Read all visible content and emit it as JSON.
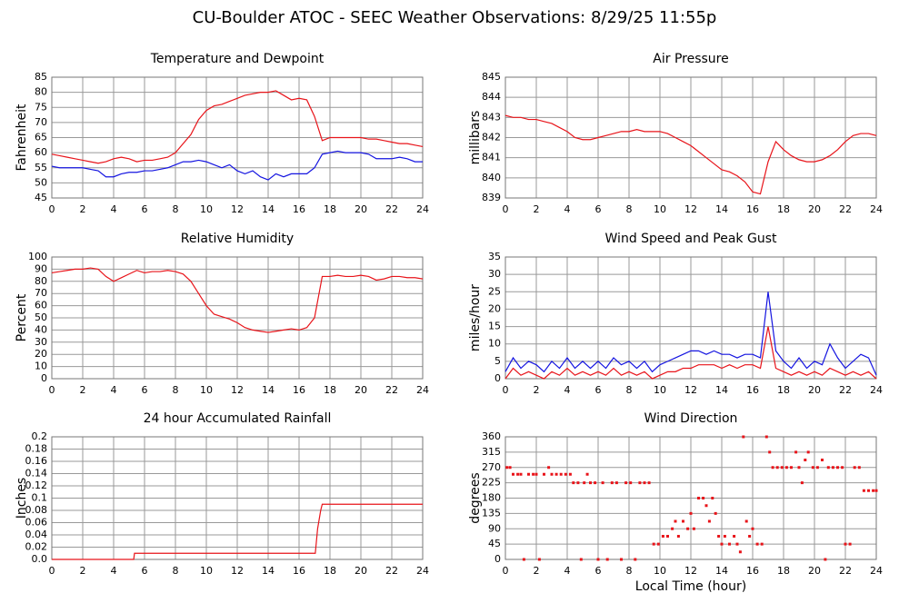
{
  "title": "CU-Boulder ATOC - SEEC Weather Observations: 8/29/25 11:55p",
  "chart_data": [
    {
      "type": "line",
      "title": "Temperature and Dewpoint",
      "ylabel": "Fahrenheit",
      "x": [
        0,
        0.5,
        1,
        1.5,
        2,
        2.5,
        3,
        3.5,
        4,
        4.5,
        5,
        5.5,
        6,
        6.5,
        7,
        7.5,
        8,
        8.5,
        9,
        9.5,
        10,
        10.5,
        11,
        11.5,
        12,
        12.5,
        13,
        13.5,
        14,
        14.5,
        15,
        15.5,
        16,
        16.5,
        17,
        17.5,
        18,
        18.5,
        19,
        19.5,
        20,
        20.5,
        21,
        21.5,
        22,
        22.5,
        23,
        23.5,
        24
      ],
      "series": [
        {
          "color": "#e8141a",
          "values": [
            59.5,
            59,
            58.5,
            58,
            57.5,
            57,
            56.5,
            57,
            58,
            58.5,
            58,
            57,
            57.5,
            57.5,
            58,
            58.5,
            60,
            63,
            66,
            71,
            74,
            75.5,
            76,
            77,
            78,
            79,
            79.5,
            80,
            80,
            80.5,
            79,
            77.5,
            78,
            77.5,
            72,
            64,
            65,
            65,
            65,
            65,
            65,
            64.5,
            64.5,
            64,
            63.5,
            63,
            63,
            62.5,
            62
          ]
        },
        {
          "color": "#1414e0",
          "values": [
            55.5,
            55,
            55,
            55,
            55,
            54.5,
            54,
            52,
            52,
            53,
            53.5,
            53.5,
            54,
            54,
            54.5,
            55,
            56,
            57,
            57,
            57.5,
            57,
            56,
            55,
            56,
            54,
            53,
            54,
            52,
            51,
            53,
            52,
            53,
            53,
            53,
            55,
            59.5,
            60,
            60.5,
            60,
            60,
            60,
            59.5,
            58,
            58,
            58,
            58.5,
            58,
            57,
            57
          ]
        }
      ],
      "xlim": [
        0,
        24
      ],
      "xticks": [
        0,
        2,
        4,
        6,
        8,
        10,
        12,
        14,
        16,
        18,
        20,
        22,
        24
      ],
      "ylim": [
        45,
        85
      ],
      "yticks": [
        45,
        50,
        55,
        60,
        65,
        70,
        75,
        80,
        85
      ]
    },
    {
      "type": "line",
      "title": "Air Pressure",
      "ylabel": "millibars",
      "x": [
        0,
        0.5,
        1,
        1.5,
        2,
        2.5,
        3,
        3.5,
        4,
        4.5,
        5,
        5.5,
        6,
        6.5,
        7,
        7.5,
        8,
        8.5,
        9,
        9.5,
        10,
        10.5,
        11,
        11.5,
        12,
        12.5,
        13,
        13.5,
        14,
        14.5,
        15,
        15.5,
        16,
        16.5,
        17,
        17.5,
        18,
        18.5,
        19,
        19.5,
        20,
        20.5,
        21,
        21.5,
        22,
        22.5,
        23,
        23.5,
        24
      ],
      "series": [
        {
          "color": "#e8141a",
          "values": [
            843.1,
            843.0,
            843.0,
            842.9,
            842.9,
            842.8,
            842.7,
            842.5,
            842.3,
            842.0,
            841.9,
            841.9,
            842.0,
            842.1,
            842.2,
            842.3,
            842.3,
            842.4,
            842.3,
            842.3,
            842.3,
            842.2,
            842.0,
            841.8,
            841.6,
            841.3,
            841.0,
            840.7,
            840.4,
            840.3,
            840.1,
            839.8,
            839.3,
            839.2,
            840.8,
            841.8,
            841.4,
            841.1,
            840.9,
            840.8,
            840.8,
            840.9,
            841.1,
            841.4,
            841.8,
            842.1,
            842.2,
            842.2,
            842.1
          ]
        }
      ],
      "xlim": [
        0,
        24
      ],
      "xticks": [
        0,
        2,
        4,
        6,
        8,
        10,
        12,
        14,
        16,
        18,
        20,
        22,
        24
      ],
      "ylim": [
        839,
        845
      ],
      "yticks": [
        839,
        840,
        841,
        842,
        843,
        844,
        845
      ]
    },
    {
      "type": "line",
      "title": "Relative Humidity",
      "ylabel": "Percent",
      "x": [
        0,
        0.5,
        1,
        1.5,
        2,
        2.5,
        3,
        3.5,
        4,
        4.5,
        5,
        5.5,
        6,
        6.5,
        7,
        7.5,
        8,
        8.5,
        9,
        9.5,
        10,
        10.5,
        11,
        11.5,
        12,
        12.5,
        13,
        13.5,
        14,
        14.5,
        15,
        15.5,
        16,
        16.5,
        17,
        17.5,
        18,
        18.5,
        19,
        19.5,
        20,
        20.5,
        21,
        21.5,
        22,
        22.5,
        23,
        23.5,
        24
      ],
      "series": [
        {
          "color": "#e8141a",
          "values": [
            87,
            88,
            89,
            90,
            90,
            91,
            90,
            84,
            80,
            83,
            86,
            89,
            87,
            88,
            88,
            89,
            88,
            86,
            80,
            70,
            60,
            53,
            51,
            49,
            46,
            42,
            40,
            39,
            38,
            39,
            40,
            41,
            40,
            42,
            50,
            84,
            84,
            85,
            84,
            84,
            85,
            84,
            81,
            82,
            84,
            84,
            83,
            83,
            82
          ]
        }
      ],
      "xlim": [
        0,
        24
      ],
      "xticks": [
        0,
        2,
        4,
        6,
        8,
        10,
        12,
        14,
        16,
        18,
        20,
        22,
        24
      ],
      "ylim": [
        0,
        100
      ],
      "yticks": [
        0,
        10,
        20,
        30,
        40,
        50,
        60,
        70,
        80,
        90,
        100
      ]
    },
    {
      "type": "line",
      "title": "Wind Speed and Peak Gust",
      "ylabel": "miles/hour",
      "x": [
        0,
        0.5,
        1,
        1.5,
        2,
        2.5,
        3,
        3.5,
        4,
        4.5,
        5,
        5.5,
        6,
        6.5,
        7,
        7.5,
        8,
        8.5,
        9,
        9.5,
        10,
        10.5,
        11,
        11.5,
        12,
        12.5,
        13,
        13.5,
        14,
        14.5,
        15,
        15.5,
        16,
        16.5,
        17,
        17.5,
        18,
        18.5,
        19,
        19.5,
        20,
        20.5,
        21,
        21.5,
        22,
        22.5,
        23,
        23.5,
        24
      ],
      "series": [
        {
          "color": "#1414e0",
          "values": [
            2,
            6,
            3,
            5,
            4,
            2,
            5,
            3,
            6,
            3,
            5,
            3,
            5,
            3,
            6,
            4,
            5,
            3,
            5,
            2,
            4,
            5,
            6,
            7,
            8,
            8,
            7,
            8,
            7,
            7,
            6,
            7,
            7,
            6,
            25,
            8,
            5,
            3,
            6,
            3,
            5,
            4,
            10,
            6,
            3,
            5,
            7,
            6,
            1
          ]
        },
        {
          "color": "#e8141a",
          "values": [
            0,
            3,
            1,
            2,
            1,
            0,
            2,
            1,
            3,
            1,
            2,
            1,
            2,
            1,
            3,
            1,
            2,
            1,
            2,
            0,
            1,
            2,
            2,
            3,
            3,
            4,
            4,
            4,
            3,
            4,
            3,
            4,
            4,
            3,
            15,
            3,
            2,
            1,
            2,
            1,
            2,
            1,
            3,
            2,
            1,
            2,
            1,
            2,
            0
          ]
        }
      ],
      "xlim": [
        0,
        24
      ],
      "xticks": [
        0,
        2,
        4,
        6,
        8,
        10,
        12,
        14,
        16,
        18,
        20,
        22,
        24
      ],
      "ylim": [
        0,
        35
      ],
      "yticks": [
        0,
        5,
        10,
        15,
        20,
        25,
        30,
        35
      ]
    },
    {
      "type": "line",
      "title": "24 hour Accumulated Rainfall",
      "ylabel": "Inches",
      "x": [
        0,
        5.3,
        5.35,
        17.05,
        17.2,
        17.4,
        17.5,
        24
      ],
      "series": [
        {
          "color": "#e8141a",
          "values": [
            0,
            0,
            0.01,
            0.01,
            0.05,
            0.08,
            0.09,
            0.09
          ]
        }
      ],
      "xlim": [
        0,
        24
      ],
      "xticks": [
        0,
        2,
        4,
        6,
        8,
        10,
        12,
        14,
        16,
        18,
        20,
        22,
        24
      ],
      "ylim": [
        0,
        0.2
      ],
      "yticks": [
        {
          "value": 0,
          "label": "0.0"
        },
        0.02,
        0.04,
        0.06,
        0.08,
        0.1,
        0.12,
        0.14,
        0.16,
        0.18,
        0.2
      ]
    },
    {
      "type": "scatter",
      "title": "Wind Direction",
      "ylabel": "degrees",
      "xlabel": "Local Time (hour)",
      "x": [
        0.1,
        0.3,
        0.5,
        0.8,
        1,
        1.2,
        1.5,
        1.8,
        2,
        2.2,
        2.5,
        2.8,
        3,
        3.3,
        3.6,
        3.9,
        4.2,
        4.4,
        4.7,
        4.9,
        5.1,
        5.3,
        5.5,
        5.8,
        6,
        6.3,
        6.6,
        6.9,
        7.2,
        7.5,
        7.8,
        8.1,
        8.4,
        8.7,
        9,
        9.3,
        9.6,
        9.9,
        10.2,
        10.5,
        10.8,
        11,
        11.2,
        11.5,
        11.8,
        12,
        12.2,
        12.5,
        12.8,
        13,
        13.2,
        13.4,
        13.6,
        13.8,
        14,
        14.2,
        14.5,
        14.8,
        15,
        15.2,
        15.4,
        15.6,
        15.8,
        16,
        16.3,
        16.6,
        16.9,
        17.1,
        17.3,
        17.6,
        17.9,
        18.2,
        18.5,
        18.8,
        19,
        19.2,
        19.4,
        19.6,
        19.9,
        20.2,
        20.5,
        20.7,
        20.9,
        21.2,
        21.5,
        21.8,
        22,
        22.3,
        22.6,
        22.9,
        23.2,
        23.5,
        23.8,
        24
      ],
      "series": [
        {
          "color": "#e8141a",
          "values": [
            270,
            270,
            250,
            250,
            250,
            0,
            250,
            250,
            250,
            0,
            250,
            270,
            250,
            250,
            250,
            250,
            250,
            225,
            225,
            0,
            225,
            250,
            225,
            225,
            0,
            225,
            0,
            225,
            225,
            0,
            225,
            225,
            0,
            225,
            225,
            225,
            45,
            45,
            68,
            68,
            90,
            112,
            68,
            112,
            90,
            135,
            90,
            180,
            180,
            158,
            112,
            180,
            135,
            68,
            45,
            68,
            45,
            68,
            45,
            22,
            360,
            112,
            68,
            90,
            45,
            45,
            360,
            315,
            270,
            270,
            270,
            270,
            270,
            315,
            270,
            225,
            292,
            315,
            270,
            270,
            292,
            0,
            270,
            270,
            270,
            270,
            45,
            45,
            270,
            270,
            202,
            202,
            202,
            202
          ]
        }
      ],
      "xlim": [
        0,
        24
      ],
      "xticks": [
        0,
        2,
        4,
        6,
        8,
        10,
        12,
        14,
        16,
        18,
        20,
        22,
        24
      ],
      "ylim": [
        0,
        360
      ],
      "yticks": [
        0,
        45,
        90,
        135,
        180,
        225,
        270,
        315,
        360
      ]
    }
  ]
}
